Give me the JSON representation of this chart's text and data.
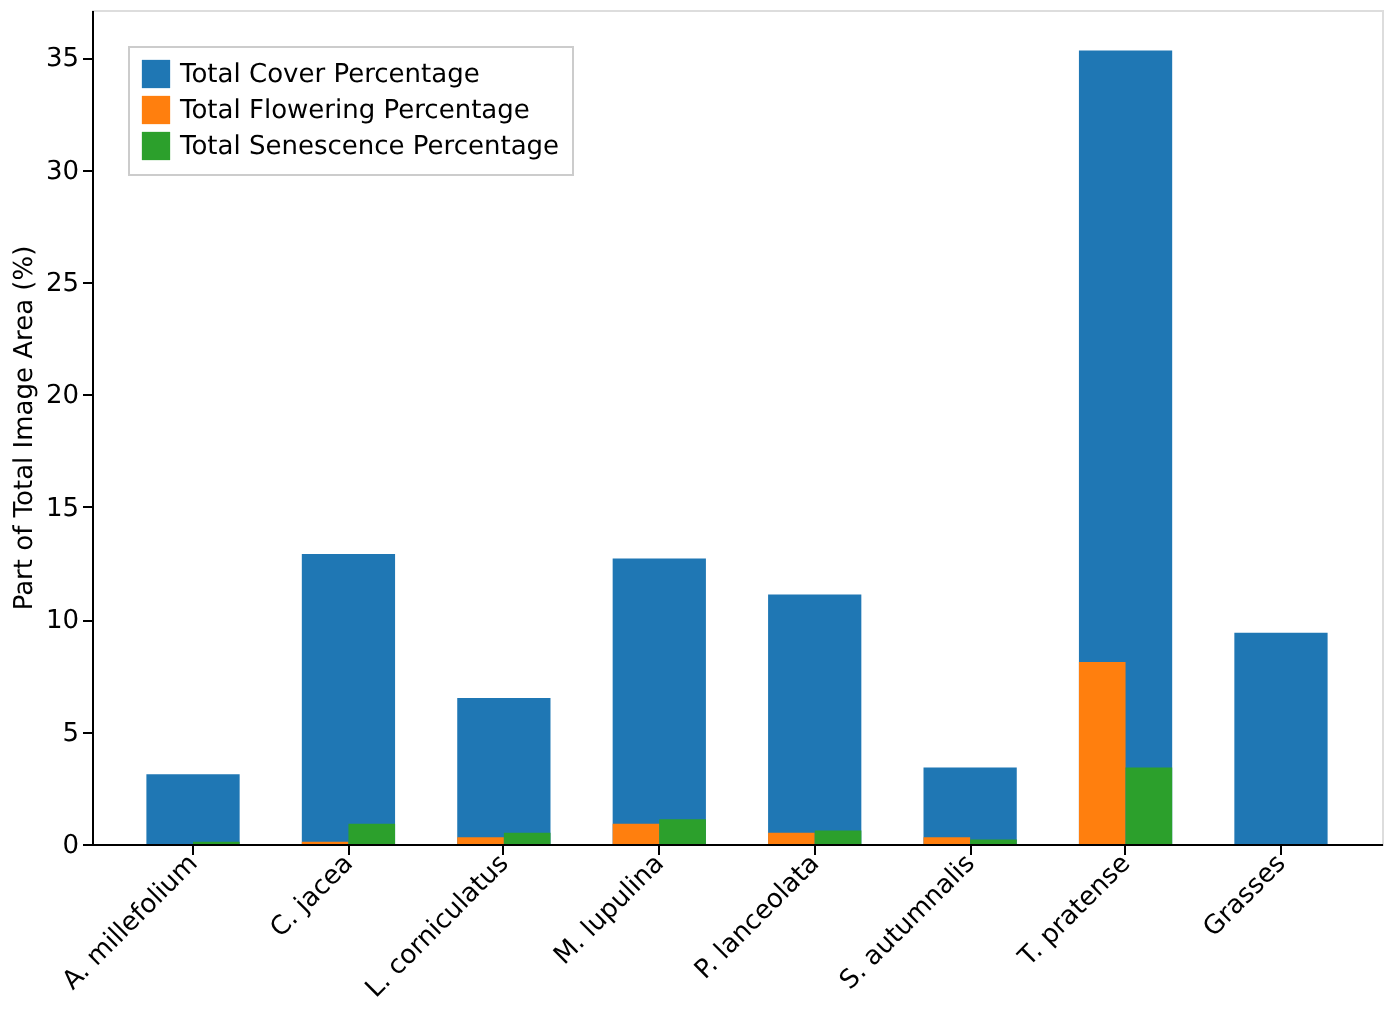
{
  "chart_data": {
    "type": "bar",
    "ylabel": "Part of Total Image Area (%)",
    "categories": [
      "A. millefolium",
      "C. jacea",
      "L. corniculatus",
      "M. lupulina",
      "P. lanceolata",
      "S. autumnalis",
      "T. pratense",
      "Grasses"
    ],
    "series": [
      {
        "name": "Total Cover Percentage",
        "color": "#1f77b4",
        "values": [
          3.1,
          12.9,
          6.5,
          12.7,
          11.1,
          3.4,
          35.3,
          9.4
        ]
      },
      {
        "name": "Total Flowering Percentage",
        "color": "#ff7f0e",
        "values": [
          0,
          0.1,
          0.3,
          0.9,
          0.5,
          0.3,
          8.1,
          0
        ]
      },
      {
        "name": "Total Senescence Percentage",
        "color": "#2ca02c",
        "values": [
          0.1,
          0.9,
          0.5,
          1.1,
          0.6,
          0.2,
          3.4,
          0
        ]
      }
    ],
    "ylim": [
      0,
      37.1
    ],
    "yticks": [
      0,
      5,
      10,
      15,
      20,
      25,
      30,
      35
    ],
    "grid": false,
    "legend": "top left"
  }
}
